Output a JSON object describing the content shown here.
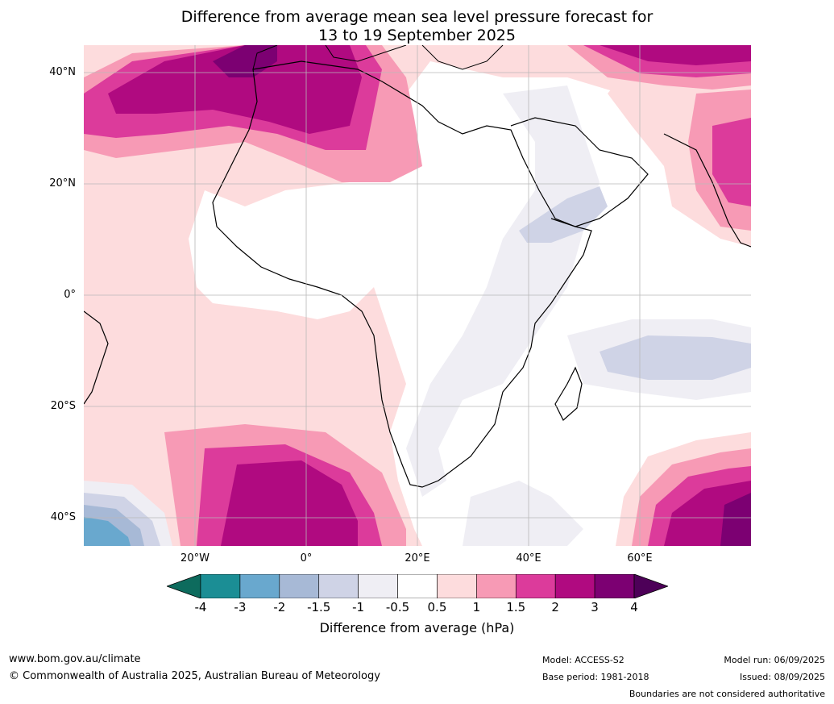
{
  "title": {
    "line1": "Difference from average mean sea level pressure forecast for",
    "line2": "13 to 19 September 2025"
  },
  "axes": {
    "lat_labels": [
      "40°N",
      "20°N",
      "0°",
      "20°S",
      "40°S"
    ],
    "lon_labels": [
      "20°W",
      "0°",
      "20°E",
      "40°E",
      "60°E"
    ],
    "lat_range": [
      -45,
      45
    ],
    "lon_range": [
      -40,
      80
    ],
    "grid": true
  },
  "colorbar": {
    "title": "Difference from average (hPa)",
    "ticks": [
      "-4",
      "-3",
      "-2",
      "-1.5",
      "-1",
      "-0.5",
      "0.5",
      "1",
      "1.5",
      "2",
      "3",
      "4"
    ],
    "colors": {
      "below_min": "#0d6b5d",
      "bins": [
        "#1b8e95",
        "#69a8ce",
        "#a7b9d6",
        "#cfd3e6",
        "#efeef4",
        "#ffffff",
        "#fddcdd",
        "#f79ab5",
        "#dc3b9b",
        "#b00a80",
        "#7c0072"
      ],
      "above_max": "#4d0058"
    }
  },
  "footer": {
    "website": "www.bom.gov.au/climate",
    "copyright": "© Commonwealth of Australia 2025, Australian Bureau of Meteorology",
    "model": "Model: ACCESS-S2",
    "base_period": "Base period: 1981-2018",
    "model_run": "Model run: 06/09/2025",
    "issued": "Issued: 08/09/2025",
    "disclaimer": "Boundaries are not considered authoritative"
  }
}
